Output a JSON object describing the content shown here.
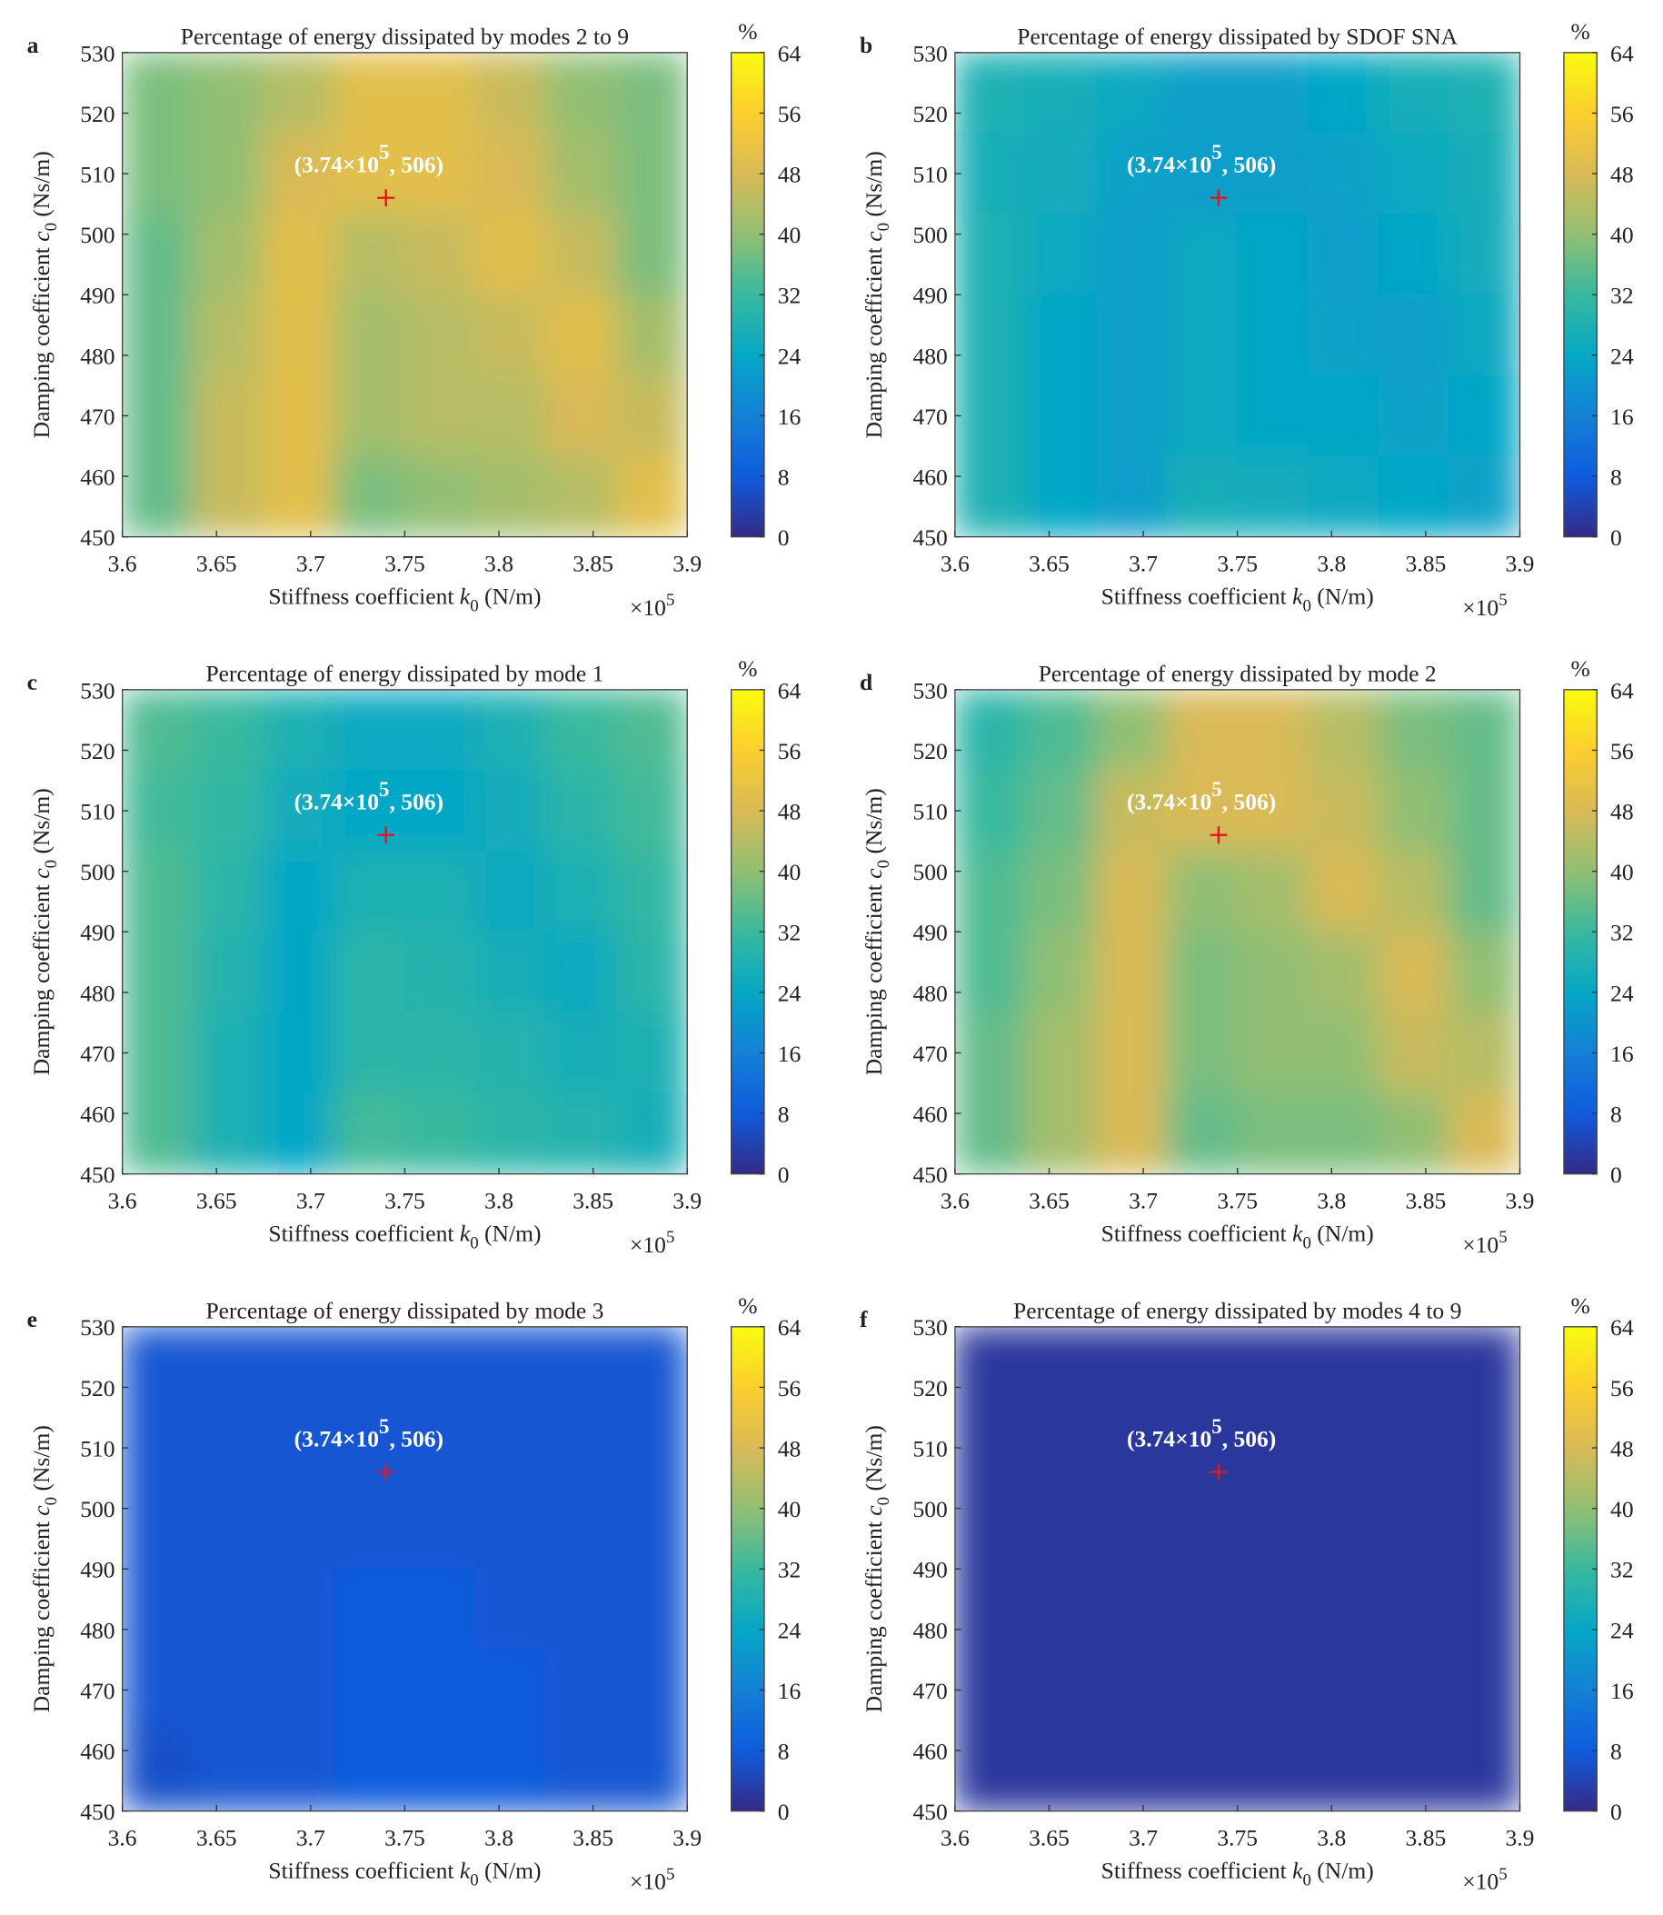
{
  "colormap": [
    "#352a87",
    "#0f5cdd",
    "#1481d6",
    "#06a7c6",
    "#38b99e",
    "#92bf73",
    "#d9ba56",
    "#fcce2e",
    "#f9fb0e"
  ],
  "chart_data": [
    {
      "type": "heatmap",
      "panel_label": "a",
      "title": "Percentage of energy dissipated by modes 2 to 9",
      "xlabel": {
        "text": "Stiffness coefficient ",
        "var": "k",
        "sub": "0",
        "unit": " (N/m)"
      },
      "ylabel": {
        "text": "Damping coefficient ",
        "var": "c",
        "sub": "0",
        "unit": " (Ns/m)"
      },
      "xlim": [
        3.6,
        3.9
      ],
      "xticks": [
        3.6,
        3.65,
        3.7,
        3.75,
        3.8,
        3.85,
        3.9
      ],
      "x_multiplier": {
        "text": "×10",
        "sup": "5"
      },
      "ylim": [
        450,
        530
      ],
      "yticks": [
        450,
        460,
        470,
        480,
        490,
        500,
        510,
        520,
        530
      ],
      "colorbar": {
        "label": "%",
        "lim": [
          0,
          64
        ],
        "ticks": [
          0,
          8,
          16,
          24,
          32,
          40,
          48,
          56,
          64
        ]
      },
      "annotation": {
        "text": "(3.74×10",
        "sup": "5",
        "tail": ", 506)"
      },
      "marker": {
        "x": 3.74,
        "y": 506,
        "color": "#e8141c"
      },
      "z": [
        [
          38,
          40,
          44,
          50,
          50,
          46,
          40,
          38
        ],
        [
          38,
          40,
          48,
          50,
          50,
          48,
          42,
          38
        ],
        [
          36,
          42,
          50,
          44,
          46,
          50,
          46,
          38
        ],
        [
          36,
          44,
          50,
          42,
          44,
          46,
          50,
          42
        ],
        [
          36,
          46,
          50,
          42,
          44,
          44,
          48,
          46
        ],
        [
          36,
          46,
          50,
          38,
          40,
          42,
          44,
          50
        ]
      ]
    },
    {
      "type": "heatmap",
      "panel_label": "b",
      "title": "Percentage of energy dissipated by SDOF SNA",
      "xlabel": {
        "text": "Stiffness coefficient ",
        "var": "k",
        "sub": "0",
        "unit": " (N/m)"
      },
      "ylabel": {
        "text": "Damping coefficient ",
        "var": "c",
        "sub": "0",
        "unit": " (Ns/m)"
      },
      "xlim": [
        3.6,
        3.9
      ],
      "xticks": [
        3.6,
        3.65,
        3.7,
        3.75,
        3.8,
        3.85,
        3.9
      ],
      "x_multiplier": {
        "text": "×10",
        "sup": "5"
      },
      "ylim": [
        450,
        530
      ],
      "yticks": [
        450,
        460,
        470,
        480,
        490,
        500,
        510,
        520,
        530
      ],
      "colorbar": {
        "label": "%",
        "lim": [
          0,
          64
        ],
        "ticks": [
          0,
          8,
          16,
          24,
          32,
          40,
          48,
          56,
          64
        ]
      },
      "annotation": {
        "text": "(3.74×10",
        "sup": "5",
        "tail": ", 506)"
      },
      "marker": {
        "x": 3.74,
        "y": 506,
        "color": "#e8141c"
      },
      "z": [
        [
          28,
          27,
          25,
          22,
          22,
          24,
          27,
          28
        ],
        [
          27,
          26,
          23,
          22,
          22,
          23,
          25,
          27
        ],
        [
          28,
          25,
          22,
          25,
          24,
          22,
          24,
          26
        ],
        [
          28,
          24,
          22,
          25,
          24,
          23,
          22,
          25
        ],
        [
          28,
          24,
          22,
          25,
          24,
          24,
          23,
          24
        ],
        [
          28,
          24,
          22,
          27,
          26,
          25,
          24,
          23
        ]
      ]
    },
    {
      "type": "heatmap",
      "panel_label": "c",
      "title": "Percentage of energy dissipated by mode 1",
      "xlabel": {
        "text": "Stiffness coefficient ",
        "var": "k",
        "sub": "0",
        "unit": " (N/m)"
      },
      "ylabel": {
        "text": "Damping coefficient ",
        "var": "c",
        "sub": "0",
        "unit": " (Ns/m)"
      },
      "xlim": [
        3.6,
        3.9
      ],
      "xticks": [
        3.6,
        3.65,
        3.7,
        3.75,
        3.8,
        3.85,
        3.9
      ],
      "x_multiplier": {
        "text": "×10",
        "sup": "5"
      },
      "ylim": [
        450,
        530
      ],
      "yticks": [
        450,
        460,
        470,
        480,
        490,
        500,
        510,
        520,
        530
      ],
      "colorbar": {
        "label": "%",
        "lim": [
          0,
          64
        ],
        "ticks": [
          0,
          8,
          16,
          24,
          32,
          40,
          48,
          56,
          64
        ]
      },
      "annotation": {
        "text": "(3.74×10",
        "sup": "5",
        "tail": ", 506)"
      },
      "marker": {
        "x": 3.74,
        "y": 506,
        "color": "#e8141c"
      },
      "z": [
        [
          34,
          32,
          28,
          25,
          25,
          28,
          32,
          34
        ],
        [
          33,
          31,
          26,
          24,
          24,
          26,
          30,
          33
        ],
        [
          34,
          30,
          24,
          28,
          28,
          25,
          28,
          31
        ],
        [
          34,
          29,
          24,
          30,
          29,
          27,
          25,
          30
        ],
        [
          34,
          28,
          24,
          30,
          30,
          29,
          27,
          28
        ],
        [
          34,
          28,
          24,
          33,
          32,
          30,
          29,
          27
        ]
      ]
    },
    {
      "type": "heatmap",
      "panel_label": "d",
      "title": "Percentage of energy dissipated by mode 2",
      "xlabel": {
        "text": "Stiffness coefficient ",
        "var": "k",
        "sub": "0",
        "unit": " (N/m)"
      },
      "ylabel": {
        "text": "Damping coefficient ",
        "var": "c",
        "sub": "0",
        "unit": " (Ns/m)"
      },
      "xlim": [
        3.6,
        3.9
      ],
      "xticks": [
        3.6,
        3.65,
        3.7,
        3.75,
        3.8,
        3.85,
        3.9
      ],
      "x_multiplier": {
        "text": "×10",
        "sup": "5"
      },
      "ylim": [
        450,
        530
      ],
      "yticks": [
        450,
        460,
        470,
        480,
        490,
        500,
        510,
        520,
        530
      ],
      "colorbar": {
        "label": "%",
        "lim": [
          0,
          64
        ],
        "ticks": [
          0,
          8,
          16,
          24,
          32,
          40,
          48,
          56,
          64
        ]
      },
      "annotation": {
        "text": "(3.74×10",
        "sup": "5",
        "tail": ", 506)"
      },
      "marker": {
        "x": 3.74,
        "y": 506,
        "color": "#e8141c"
      },
      "z": [
        [
          30,
          34,
          40,
          48,
          48,
          44,
          38,
          36
        ],
        [
          32,
          36,
          46,
          48,
          48,
          46,
          40,
          36
        ],
        [
          34,
          38,
          48,
          40,
          42,
          48,
          44,
          36
        ],
        [
          34,
          40,
          48,
          38,
          40,
          42,
          48,
          40
        ],
        [
          36,
          42,
          48,
          38,
          40,
          40,
          46,
          44
        ],
        [
          36,
          42,
          48,
          36,
          38,
          38,
          40,
          48
        ]
      ]
    },
    {
      "type": "heatmap",
      "panel_label": "e",
      "title": "Percentage of energy dissipated by mode 3",
      "xlabel": {
        "text": "Stiffness coefficient ",
        "var": "k",
        "sub": "0",
        "unit": " (N/m)"
      },
      "ylabel": {
        "text": "Damping coefficient ",
        "var": "c",
        "sub": "0",
        "unit": " (Ns/m)"
      },
      "xlim": [
        3.6,
        3.9
      ],
      "xticks": [
        3.6,
        3.65,
        3.7,
        3.75,
        3.8,
        3.85,
        3.9
      ],
      "x_multiplier": {
        "text": "×10",
        "sup": "5"
      },
      "ylim": [
        450,
        530
      ],
      "yticks": [
        450,
        460,
        470,
        480,
        490,
        500,
        510,
        520,
        530
      ],
      "colorbar": {
        "label": "%",
        "lim": [
          0,
          64
        ],
        "ticks": [
          0,
          8,
          16,
          24,
          32,
          40,
          48,
          56,
          64
        ]
      },
      "annotation": {
        "text": "(3.74×10",
        "sup": "5",
        "tail": ", 506)"
      },
      "marker": {
        "x": 3.74,
        "y": 506,
        "color": "#e8141c"
      },
      "z": [
        [
          7,
          7,
          7,
          7,
          7,
          7,
          7,
          7
        ],
        [
          7,
          7,
          7,
          7,
          7,
          7,
          7,
          7
        ],
        [
          7,
          7,
          7,
          7,
          7,
          7,
          7,
          7
        ],
        [
          7,
          7,
          7,
          8,
          8,
          7,
          7,
          7
        ],
        [
          7,
          7,
          7,
          8,
          8,
          8,
          7,
          7
        ],
        [
          6,
          7,
          7,
          8,
          8,
          8,
          7,
          7
        ]
      ]
    },
    {
      "type": "heatmap",
      "panel_label": "f",
      "title": "Percentage of energy dissipated by modes 4 to 9",
      "xlabel": {
        "text": "Stiffness coefficient ",
        "var": "k",
        "sub": "0",
        "unit": " (N/m)"
      },
      "ylabel": {
        "text": "Damping coefficient ",
        "var": "c",
        "sub": "0",
        "unit": " (Ns/m)"
      },
      "xlim": [
        3.6,
        3.9
      ],
      "xticks": [
        3.6,
        3.65,
        3.7,
        3.75,
        3.8,
        3.85,
        3.9
      ],
      "x_multiplier": {
        "text": "×10",
        "sup": "5"
      },
      "ylim": [
        450,
        530
      ],
      "yticks": [
        450,
        460,
        470,
        480,
        490,
        500,
        510,
        520,
        530
      ],
      "colorbar": {
        "label": "%",
        "lim": [
          0,
          64
        ],
        "ticks": [
          0,
          8,
          16,
          24,
          32,
          40,
          48,
          56,
          64
        ]
      },
      "annotation": {
        "text": "(3.74×10",
        "sup": "5",
        "tail": ", 506)"
      },
      "marker": {
        "x": 3.74,
        "y": 506,
        "color": "#e8141c"
      },
      "z": [
        [
          2,
          2,
          2,
          2,
          2,
          2,
          2,
          2
        ],
        [
          2,
          2,
          2,
          2,
          2,
          2,
          2,
          2
        ],
        [
          2,
          2,
          2,
          2,
          2,
          2,
          2,
          2
        ],
        [
          2,
          2,
          2,
          2,
          2,
          2,
          2,
          2
        ],
        [
          2,
          2,
          2,
          2,
          2,
          2,
          2,
          2
        ],
        [
          2,
          2,
          2,
          2,
          2,
          2,
          2,
          2
        ]
      ]
    }
  ]
}
